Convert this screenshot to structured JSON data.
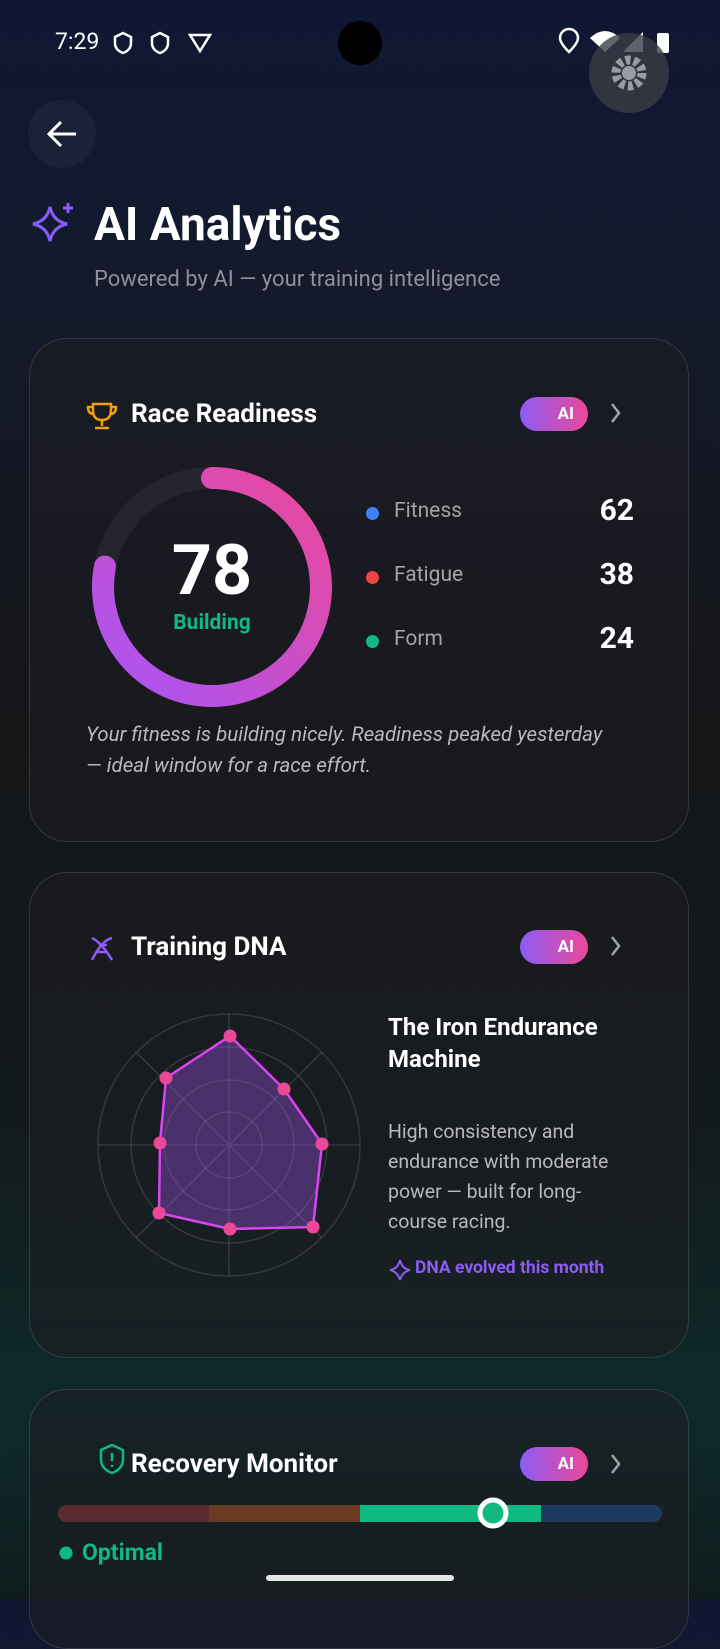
{
  "status_bar": {
    "time": "7:29"
  },
  "header": {
    "title": "AI Analytics",
    "subtitle": "Powered by AI — your training intelligence"
  },
  "race_readiness": {
    "title": "Race Readiness",
    "badge": "AI",
    "score": 78,
    "status": "Building",
    "metrics": [
      {
        "label": "Fitness",
        "value": 62,
        "color": "#3b82f6"
      },
      {
        "label": "Fatigue",
        "value": 38,
        "color": "#ef4444"
      },
      {
        "label": "Form",
        "value": 24,
        "color": "#10b981"
      }
    ],
    "summary": "Your fitness is building nicely. Readiness peaked yesterday — ideal window for a race effort."
  },
  "training_dna": {
    "title": "Training DNA",
    "badge": "AI",
    "profile_title": "The Iron Endurance Machine",
    "description": "High consistency and endurance with moderate power — built for long-course racing.",
    "note": "DNA evolved this month"
  },
  "recovery_monitor": {
    "title": "Recovery Monitor",
    "badge": "AI",
    "status": "Optimal"
  }
}
